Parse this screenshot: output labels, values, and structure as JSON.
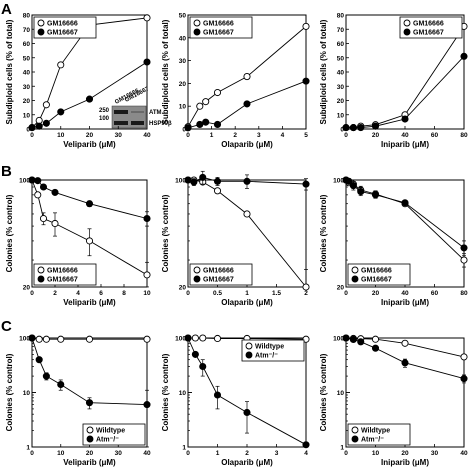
{
  "panels": [
    {
      "letter": "A"
    },
    {
      "letter": "B"
    },
    {
      "letter": "C"
    }
  ],
  "blot": {
    "lane_labels": [
      "GM16666",
      "GM16667"
    ],
    "mw_labels": [
      "250",
      "100"
    ],
    "band_labels": [
      "ATM",
      "HSP90β"
    ]
  },
  "chart_data": [
    {
      "type": "line",
      "row": "A",
      "col": 0,
      "scale": "linear",
      "xlabel": "Veliparib (μM)",
      "ylabel": "Subdiploid cells (% of total)",
      "xlim": [
        0,
        40
      ],
      "ylim": [
        0,
        80
      ],
      "xticks": [
        0,
        10,
        20,
        30,
        40
      ],
      "yticks": [
        0,
        10,
        20,
        30,
        40,
        50,
        60,
        70,
        80
      ],
      "series": [
        {
          "name": "GM16666",
          "marker": "open",
          "x": [
            0,
            2.5,
            5,
            10,
            20,
            40
          ],
          "y": [
            1,
            6,
            17,
            45,
            73,
            78
          ]
        },
        {
          "name": "GM16667",
          "marker": "filled",
          "x": [
            0,
            2.5,
            5,
            10,
            20,
            40
          ],
          "y": [
            1,
            2,
            4,
            12,
            21,
            47
          ]
        }
      ],
      "legend": {
        "position": "top-left",
        "order": [
          0,
          1
        ]
      }
    },
    {
      "type": "line",
      "row": "A",
      "col": 1,
      "scale": "linear",
      "xlabel": "Olaparib (μM)",
      "ylabel": "Subdiploid cells (% of total)",
      "xlim": [
        0,
        5
      ],
      "ylim": [
        0,
        50
      ],
      "xticks": [
        0,
        1,
        2,
        3,
        4,
        5
      ],
      "yticks": [
        0,
        10,
        20,
        30,
        40,
        50
      ],
      "series": [
        {
          "name": "GM16666",
          "marker": "open",
          "x": [
            0,
            0.5,
            0.75,
            1.25,
            2.5,
            5
          ],
          "y": [
            1,
            10,
            12,
            16,
            23,
            45
          ]
        },
        {
          "name": "GM16667",
          "marker": "filled",
          "x": [
            0,
            0.5,
            0.75,
            1.25,
            2.5,
            5
          ],
          "y": [
            0.5,
            2,
            3,
            2,
            11,
            21
          ]
        }
      ],
      "legend": {
        "position": "top-left",
        "order": [
          0,
          1
        ]
      }
    },
    {
      "type": "line",
      "row": "A",
      "col": 2,
      "scale": "linear",
      "xlabel": "Iniparib (μM)",
      "ylabel": "Subdiploid cells (% of total)",
      "xlim": [
        0,
        80
      ],
      "ylim": [
        0,
        80
      ],
      "xticks": [
        0,
        20,
        40,
        60,
        80
      ],
      "yticks": [
        0,
        10,
        20,
        30,
        40,
        50,
        60,
        70,
        80
      ],
      "series": [
        {
          "name": "GM16666",
          "marker": "open",
          "x": [
            0,
            5,
            10,
            20,
            40,
            80
          ],
          "y": [
            1,
            1,
            2,
            3,
            10,
            72
          ]
        },
        {
          "name": "GM16667",
          "marker": "filled",
          "x": [
            0,
            5,
            10,
            20,
            40,
            80
          ],
          "y": [
            1,
            1,
            1,
            2,
            7,
            51
          ]
        }
      ],
      "legend": {
        "position": "top-right",
        "order": [
          0,
          1
        ]
      }
    },
    {
      "type": "line",
      "row": "B",
      "col": 0,
      "scale": "log",
      "xlabel": "Veliparib (μM)",
      "ylabel": "Colonies (% control)",
      "xlim": [
        0,
        10
      ],
      "ylim": [
        20,
        100
      ],
      "xticks": [
        0,
        2,
        4,
        6,
        8,
        10
      ],
      "yticks": [
        20,
        100
      ],
      "series": [
        {
          "name": "GM16666",
          "marker": "open",
          "x": [
            0,
            0.5,
            1,
            2,
            5,
            10
          ],
          "y": [
            100,
            80,
            56,
            52,
            40,
            24
          ],
          "err": [
            0,
            0,
            5,
            9,
            8,
            5
          ]
        },
        {
          "name": "GM16667",
          "marker": "filled",
          "x": [
            0,
            0.5,
            1,
            2,
            5,
            10
          ],
          "y": [
            100,
            99,
            90,
            83,
            70,
            56
          ],
          "err": [
            0,
            0,
            0,
            3,
            3,
            6
          ]
        }
      ],
      "legend": {
        "position": "bottom-left",
        "order": [
          0,
          1
        ]
      }
    },
    {
      "type": "line",
      "row": "B",
      "col": 1,
      "scale": "log",
      "xlabel": "Olaparib (μM)",
      "ylabel": "Colonies (% control)",
      "xlim": [
        0,
        2.0
      ],
      "ylim": [
        20,
        100
      ],
      "xticks": [
        0,
        0.5,
        1.0,
        1.5,
        2.0
      ],
      "yticks": [
        20,
        100
      ],
      "series": [
        {
          "name": "GM16666",
          "marker": "open",
          "x": [
            0,
            0.1,
            0.25,
            0.5,
            1.0,
            2.0
          ],
          "y": [
            100,
            100,
            97,
            85,
            60,
            20
          ],
          "err": [
            0,
            0,
            0,
            3,
            0,
            6
          ]
        },
        {
          "name": "GM16667",
          "marker": "filled",
          "x": [
            0,
            0.1,
            0.25,
            0.5,
            1.0,
            2.0
          ],
          "y": [
            100,
            97,
            104,
            98,
            98,
            94
          ],
          "err": [
            0,
            5,
            10,
            6,
            10,
            8
          ]
        }
      ],
      "legend": {
        "position": "bottom-left",
        "order": [
          0,
          1
        ]
      }
    },
    {
      "type": "line",
      "row": "B",
      "col": 2,
      "scale": "log",
      "xlabel": "Iniparib (μM)",
      "ylabel": "Colonies (% control)",
      "xlim": [
        0,
        80
      ],
      "ylim": [
        20,
        100
      ],
      "xticks": [
        0,
        20,
        40,
        60,
        80
      ],
      "yticks": [
        20,
        100
      ],
      "series": [
        {
          "name": "GM16666",
          "marker": "open",
          "x": [
            0,
            2,
            5,
            10,
            20,
            40,
            80
          ],
          "y": [
            100,
            96,
            94,
            86,
            81,
            70,
            30
          ],
          "err": [
            0,
            4,
            6,
            5,
            4,
            0,
            3
          ]
        },
        {
          "name": "GM16667",
          "marker": "filled",
          "x": [
            0,
            2,
            5,
            10,
            20,
            40,
            80
          ],
          "y": [
            100,
            98,
            92,
            84,
            80,
            71,
            36
          ],
          "err": [
            0,
            4,
            6,
            5,
            4,
            0,
            4
          ]
        }
      ],
      "legend": {
        "position": "bottom-left",
        "order": [
          0,
          1
        ]
      }
    },
    {
      "type": "line",
      "row": "C",
      "col": 0,
      "scale": "log",
      "xlabel": "Veliparib (μM)",
      "ylabel": "Colonies (% control)",
      "xlim": [
        0,
        40
      ],
      "ylim": [
        1,
        100
      ],
      "xticks": [
        0,
        10,
        20,
        30,
        40
      ],
      "yticks": [
        1,
        10,
        100
      ],
      "series": [
        {
          "name": "Wildtype",
          "marker": "open",
          "x": [
            0,
            2.5,
            5,
            10,
            20,
            40
          ],
          "y": [
            100,
            95,
            95,
            95,
            95,
            95
          ]
        },
        {
          "name": "Atm⁻/⁻",
          "marker": "filled",
          "x": [
            0,
            2.5,
            5,
            10,
            20,
            40
          ],
          "y": [
            100,
            40,
            20,
            14,
            6.5,
            6
          ],
          "err": [
            0,
            0,
            3,
            3,
            1.5,
            5
          ]
        }
      ],
      "legend": {
        "position": "bottom-right",
        "order": [
          0,
          1
        ]
      }
    },
    {
      "type": "line",
      "row": "C",
      "col": 1,
      "scale": "log",
      "xlabel": "Olaparib (μM)",
      "ylabel": "Colonies (% control)",
      "xlim": [
        0,
        4
      ],
      "ylim": [
        1,
        100
      ],
      "xticks": [
        0,
        1,
        2,
        3,
        4
      ],
      "yticks": [
        1,
        10,
        100
      ],
      "series": [
        {
          "name": "Wildtype",
          "marker": "open",
          "x": [
            0,
            0.25,
            0.5,
            1,
            2,
            4
          ],
          "y": [
            100,
            100,
            100,
            98,
            98,
            95
          ]
        },
        {
          "name": "Atm⁻/⁻",
          "marker": "filled",
          "x": [
            0,
            0.25,
            0.5,
            1,
            2,
            4
          ],
          "y": [
            100,
            50,
            30,
            9,
            4.3,
            1.1
          ],
          "err": [
            0,
            0,
            10,
            4,
            2.5,
            0
          ]
        }
      ],
      "legend": {
        "position": "top-right",
        "order": [
          0,
          1
        ]
      }
    },
    {
      "type": "line",
      "row": "C",
      "col": 2,
      "scale": "log",
      "xlabel": "Iniparib (μM)",
      "ylabel": "Colonies (% control)",
      "xlim": [
        0,
        40
      ],
      "ylim": [
        1,
        100
      ],
      "xticks": [
        0,
        10,
        20,
        30,
        40
      ],
      "yticks": [
        1,
        10,
        100
      ],
      "series": [
        {
          "name": "Wildtype",
          "marker": "open",
          "x": [
            0,
            2.5,
            5,
            10,
            20,
            40
          ],
          "y": [
            100,
            98,
            97,
            95,
            80,
            45
          ],
          "err": [
            0,
            0,
            0,
            4,
            5,
            5
          ]
        },
        {
          "name": "Atm⁻/⁻",
          "marker": "filled",
          "x": [
            0,
            2.5,
            5,
            10,
            20,
            40
          ],
          "y": [
            100,
            94,
            85,
            65,
            35,
            18
          ],
          "err": [
            0,
            0,
            0,
            5,
            6,
            3
          ]
        }
      ],
      "legend": {
        "position": "bottom-left",
        "order": [
          0,
          1
        ]
      }
    }
  ]
}
